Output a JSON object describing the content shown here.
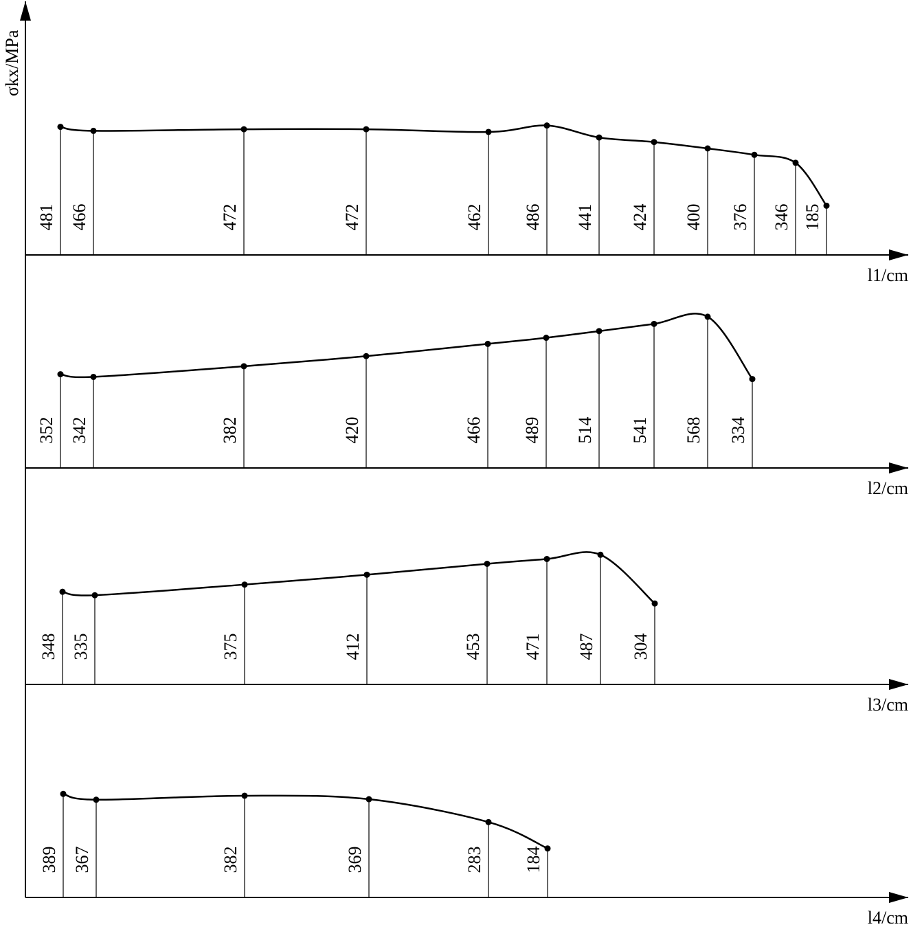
{
  "chart_data": [
    {
      "type": "line",
      "y_label": "σkx/MPa",
      "x_label": "l1/cm",
      "color": "#000000",
      "x": [
        51,
        99,
        318,
        496,
        674,
        759,
        835,
        915,
        993,
        1061,
        1121,
        1166
      ],
      "values": [
        481,
        466,
        472,
        472,
        462,
        486,
        441,
        424,
        400,
        376,
        346,
        185
      ],
      "xlim": [
        0,
        1290
      ],
      "ylim": [
        0,
        800
      ]
    },
    {
      "type": "line",
      "x_label": "l2/cm",
      "color": "#000000",
      "x": [
        51,
        99,
        318,
        496,
        673,
        758,
        835,
        915,
        993,
        1058
      ],
      "values": [
        352,
        342,
        382,
        420,
        466,
        489,
        514,
        541,
        568,
        334
      ],
      "xlim": [
        0,
        1290
      ],
      "ylim": [
        0,
        800
      ]
    },
    {
      "type": "line",
      "x_label": "l3/cm",
      "color": "#000000",
      "x": [
        54,
        101,
        319,
        497,
        672,
        759,
        837,
        916
      ],
      "values": [
        348,
        335,
        375,
        412,
        453,
        471,
        487,
        304
      ],
      "xlim": [
        0,
        1290
      ],
      "ylim": [
        0,
        800
      ]
    },
    {
      "type": "line",
      "x_label": "l4/cm",
      "color": "#000000",
      "x": [
        55,
        103,
        319,
        500,
        674,
        760
      ],
      "values": [
        389,
        367,
        382,
        369,
        283,
        184
      ],
      "xlim": [
        0,
        1290
      ],
      "ylim": [
        0,
        800
      ]
    }
  ]
}
